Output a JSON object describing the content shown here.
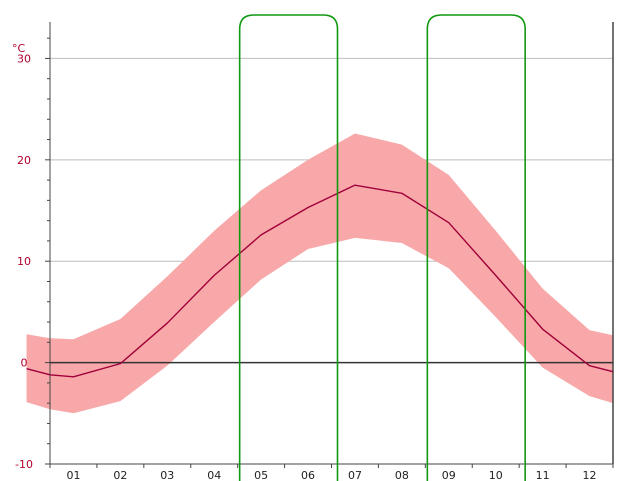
{
  "chart_data": {
    "type": "area",
    "unit_label": "°C",
    "categories": [
      "01",
      "02",
      "03",
      "04",
      "05",
      "06",
      "07",
      "08",
      "09",
      "10",
      "11",
      "12"
    ],
    "x_range": [
      0.5,
      12.5
    ],
    "ylim": [
      -10,
      33
    ],
    "y_ticks": [
      -10,
      0,
      10,
      20,
      30
    ],
    "grid": true,
    "series": [
      {
        "role": "mean",
        "x": [
          0.0,
          0.5,
          1.0,
          2.0,
          3.0,
          4.0,
          5.0,
          6.0,
          7.0,
          8.0,
          9.0,
          10.0,
          11.0,
          12.0,
          12.5
        ],
        "values": [
          -0.6,
          -1.2,
          -1.4,
          -0.1,
          3.9,
          8.6,
          12.6,
          15.3,
          17.5,
          16.7,
          13.8,
          8.6,
          3.3,
          -0.3,
          -0.9
        ]
      },
      {
        "role": "max",
        "x": [
          0.0,
          0.5,
          1.0,
          2.0,
          3.0,
          4.0,
          5.0,
          6.0,
          7.0,
          8.0,
          9.0,
          10.0,
          11.0,
          12.0,
          12.5
        ],
        "values": [
          2.8,
          2.4,
          2.3,
          4.3,
          8.5,
          13.0,
          17.0,
          20.0,
          22.6,
          21.5,
          18.5,
          13.0,
          7.3,
          3.2,
          2.7
        ]
      },
      {
        "role": "min",
        "x": [
          0.0,
          0.5,
          1.0,
          2.0,
          3.0,
          4.0,
          5.0,
          6.0,
          7.0,
          8.0,
          9.0,
          10.0,
          11.0,
          12.0,
          12.5
        ],
        "values": [
          -3.9,
          -4.6,
          -5.0,
          -3.8,
          -0.3,
          4.0,
          8.2,
          11.2,
          12.3,
          11.8,
          9.3,
          4.5,
          -0.5,
          -3.3,
          -4.0
        ]
      }
    ],
    "highlight_groups": [
      {
        "months": [
          "05",
          "06"
        ]
      },
      {
        "months": [
          "09",
          "10"
        ]
      }
    ],
    "colors": {
      "mean_line": "#a0003a",
      "range_fill": "#f8a8a8",
      "grid": "#bdbdbd",
      "zero_line": "#333333",
      "highlight_outline": "#119911",
      "axis_label": "#b0002a",
      "tick_label": "#222222"
    }
  }
}
